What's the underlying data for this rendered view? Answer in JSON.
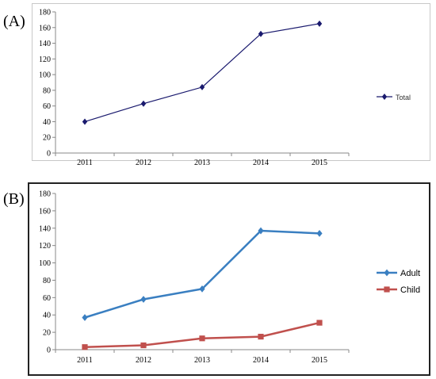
{
  "panels": [
    {
      "label": "(A)",
      "chart_data": {
        "type": "line",
        "categories": [
          "2011",
          "2012",
          "2013",
          "2014",
          "2015"
        ],
        "ylim": [
          0,
          180
        ],
        "yticks": [
          0,
          20,
          40,
          60,
          80,
          100,
          120,
          140,
          160,
          180
        ],
        "grid": false,
        "legend": "right",
        "series": [
          {
            "name": "Total",
            "values": [
              40,
              63,
              84,
              152,
              165
            ],
            "color": "#1a1a6e",
            "marker": "diamond"
          }
        ]
      }
    },
    {
      "label": "(B)",
      "chart_data": {
        "type": "line",
        "categories": [
          "2011",
          "2012",
          "2013",
          "2014",
          "2015"
        ],
        "ylim": [
          0,
          180
        ],
        "yticks": [
          0,
          20,
          40,
          60,
          80,
          100,
          120,
          140,
          160,
          180
        ],
        "grid": false,
        "legend": "right",
        "series": [
          {
            "name": "Adult",
            "values": [
              37,
              58,
              70,
              137,
              134
            ],
            "color": "#3a7fc1",
            "marker": "diamond"
          },
          {
            "name": "Child",
            "values": [
              3,
              5,
              13,
              15,
              31
            ],
            "color": "#c0504d",
            "marker": "square"
          }
        ]
      }
    }
  ]
}
